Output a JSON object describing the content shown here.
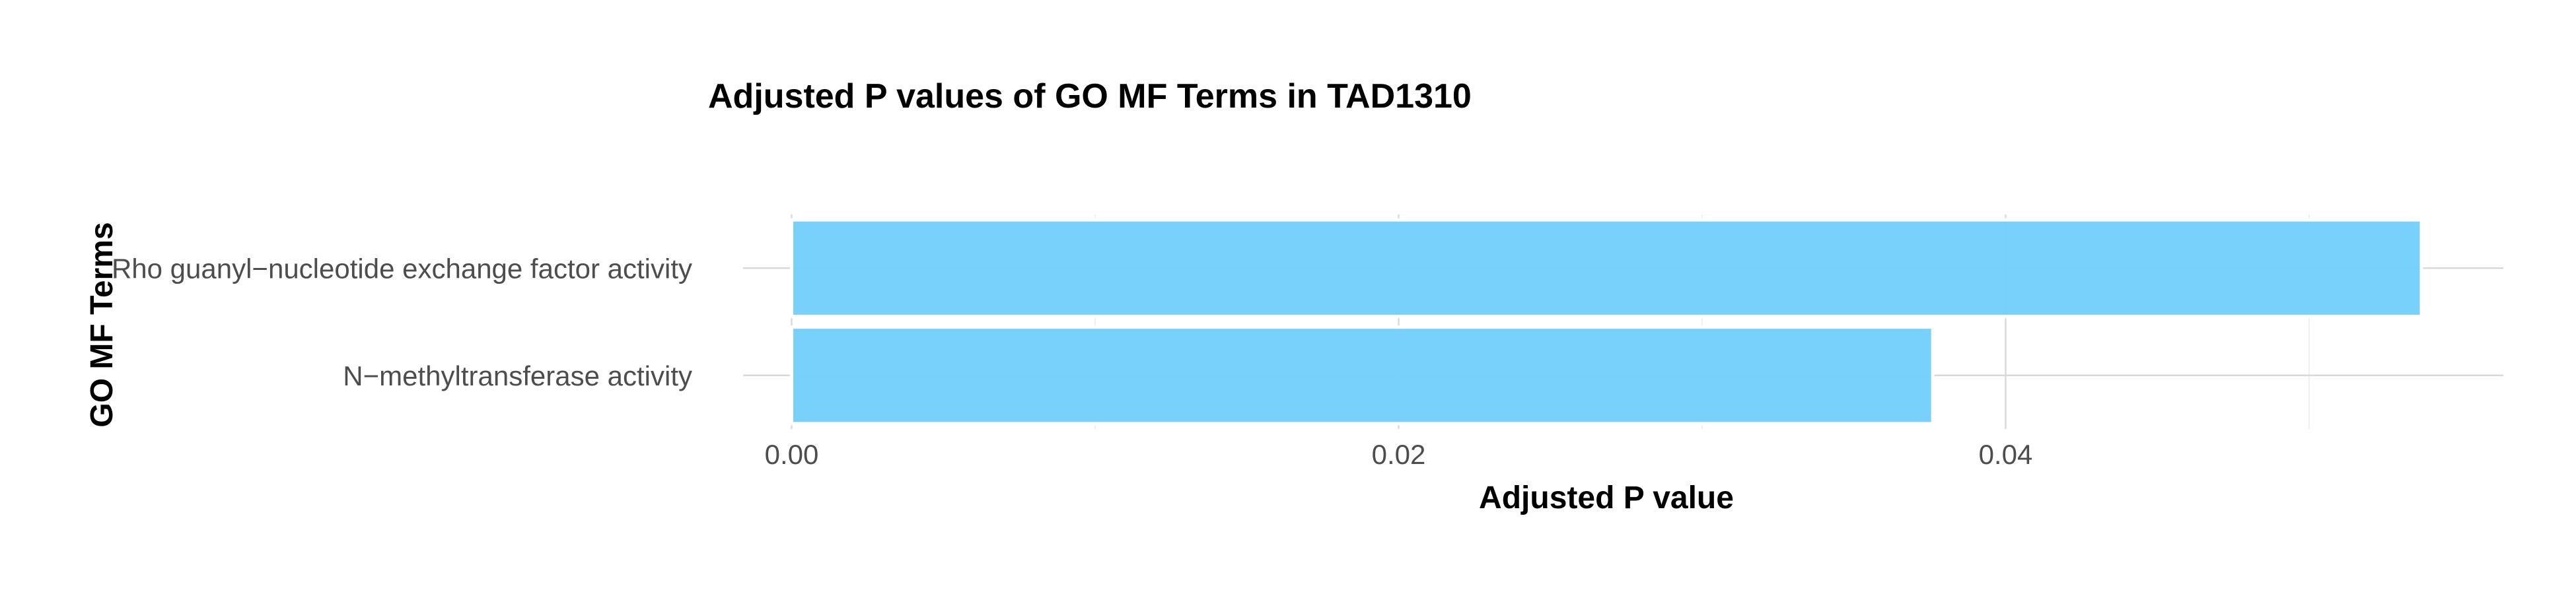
{
  "chart_data": {
    "type": "bar",
    "orientation": "horizontal",
    "title": "Adjusted P values of GO MF Terms in TAD1310",
    "xlabel": "Adjusted P value",
    "ylabel": "GO MF Terms",
    "categories": [
      "Rho guanyl−nucleotide exchange factor activity",
      "N−methyltransferase activity"
    ],
    "values": [
      0.0537,
      0.0376
    ],
    "xlim": [
      -0.0016,
      0.0564
    ],
    "xticks": [
      0.0,
      0.02,
      0.04
    ],
    "xtick_labels": [
      "0.00",
      "0.02",
      "0.04"
    ],
    "grid": true,
    "legend": "none",
    "bar_color": "#74cffa",
    "bar_outline": "#ffffff"
  }
}
